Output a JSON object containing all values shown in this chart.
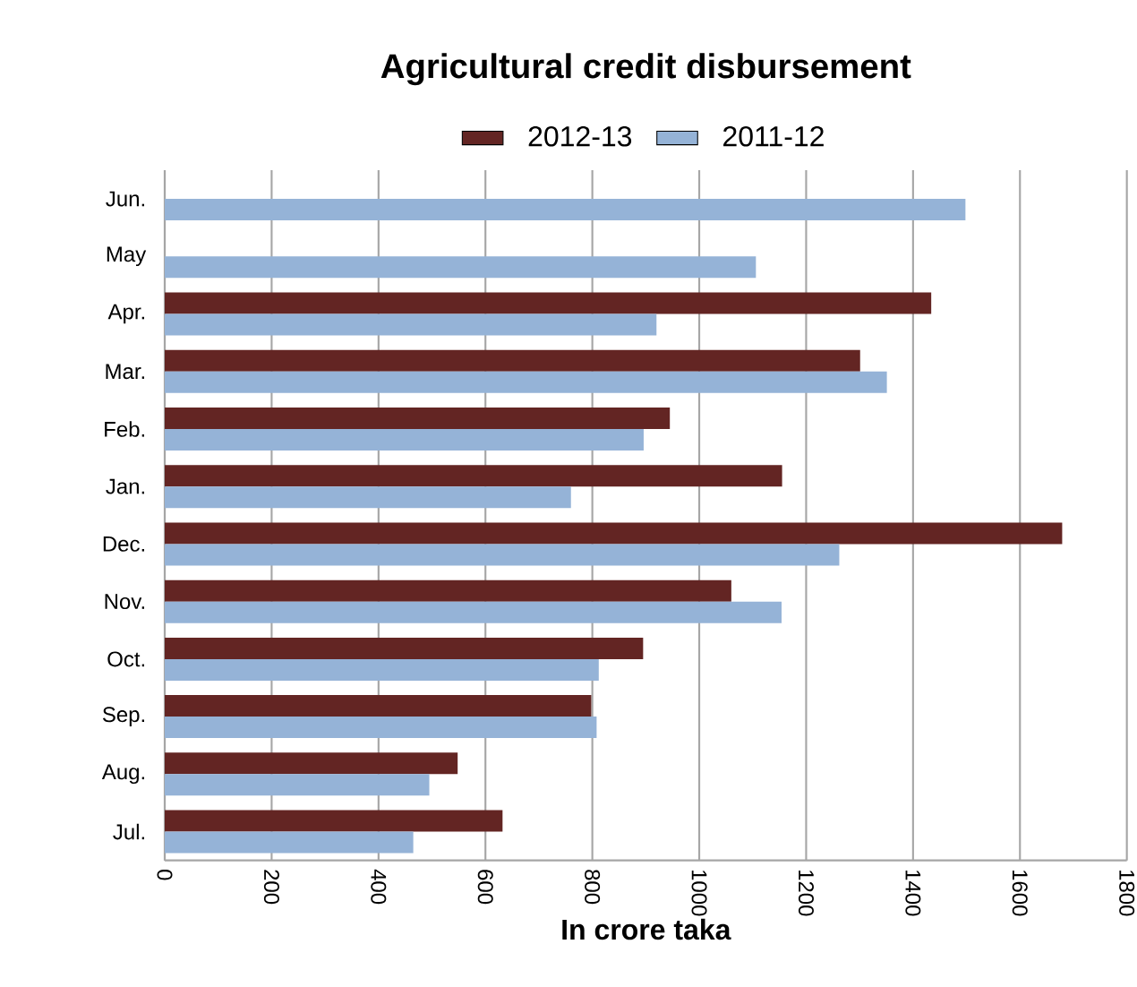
{
  "chart_data": {
    "type": "bar",
    "orientation": "horizontal",
    "title": "Agricultural credit disbursement",
    "xlabel": "In crore taka",
    "categories": [
      "Jun.",
      "May",
      "Apr.",
      "Mar.",
      "Feb.",
      "Jan.",
      "Dec.",
      "Nov.",
      "Oct.",
      "Sep.",
      "Aug.",
      "Jul."
    ],
    "series": [
      {
        "name": "2012-13",
        "color": "#632523",
        "values": [
          null,
          null,
          1434,
          1301,
          945,
          1155,
          1679,
          1060,
          895,
          798,
          548,
          632
        ]
      },
      {
        "name": "2011-12",
        "color": "#95b3d7",
        "values": [
          1498,
          1106,
          920,
          1351,
          896,
          760,
          1262,
          1154,
          812,
          808,
          495,
          465
        ]
      }
    ],
    "xlim": [
      0,
      1800
    ],
    "xticks": [
      0,
      200,
      400,
      600,
      800,
      1000,
      1200,
      1400,
      1600,
      1800
    ],
    "grid": "x",
    "legend": "top"
  }
}
